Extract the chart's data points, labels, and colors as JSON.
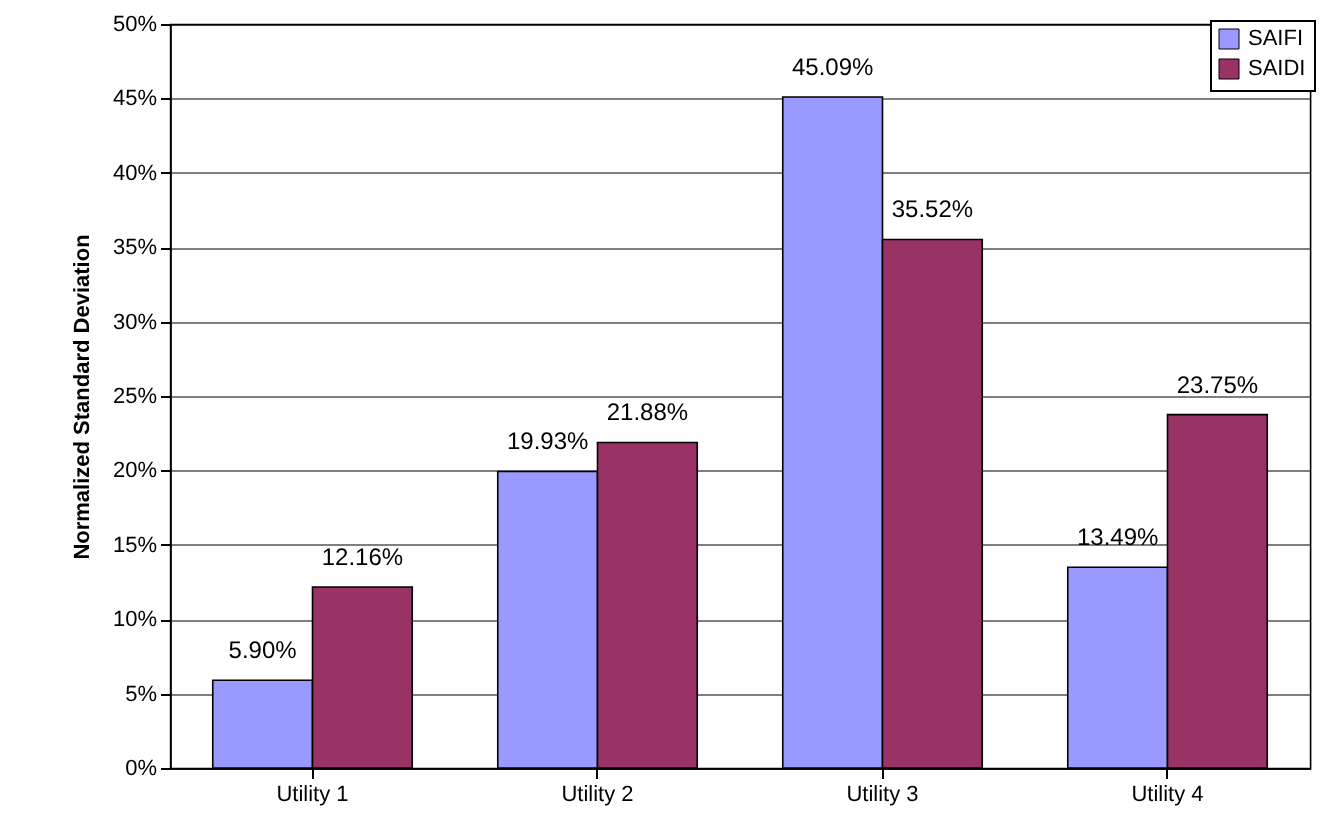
{
  "chart_data": {
    "type": "bar",
    "categories": [
      "Utility 1",
      "Utility 2",
      "Utility 3",
      "Utility 4"
    ],
    "ylabel": "Normalized Standard Deviation",
    "series": [
      {
        "name": "SAIFI",
        "color": "#9999ff",
        "values": [
          5.9,
          19.93,
          45.09,
          13.49
        ],
        "value_labels": [
          "5.90%",
          "19.93%",
          "45.09%",
          "13.49%"
        ]
      },
      {
        "name": "SAIDI",
        "color": "#993366",
        "values": [
          12.16,
          21.88,
          35.52,
          23.75
        ],
        "value_labels": [
          "12.16%",
          "21.88%",
          "35.52%",
          "23.75%"
        ]
      }
    ],
    "ylim": [
      0,
      50
    ],
    "yticks": [
      {
        "value": 0,
        "label": "0%"
      },
      {
        "value": 5,
        "label": "5%"
      },
      {
        "value": 10,
        "label": "10%"
      },
      {
        "value": 15,
        "label": "15%"
      },
      {
        "value": 20,
        "label": "20%"
      },
      {
        "value": 25,
        "label": "25%"
      },
      {
        "value": 30,
        "label": "30%"
      },
      {
        "value": 35,
        "label": "35%"
      },
      {
        "value": 40,
        "label": "40%"
      },
      {
        "value": 45,
        "label": "45%"
      },
      {
        "value": 50,
        "label": "50%"
      }
    ],
    "grid": "y",
    "legend": "top right"
  }
}
